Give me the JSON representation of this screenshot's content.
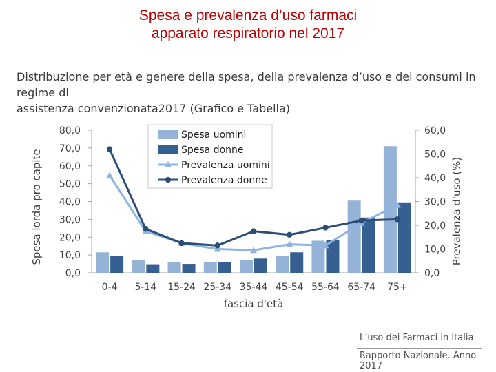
{
  "slide": {
    "title_line1": "Spesa e prevalenza d’uso farmaci",
    "title_line2": "apparato respiratorio nel 2017",
    "subtitle_line1": "Distribuzione per età e genere della spesa, della prevalenza d’uso e dei consumi in regime di",
    "subtitle_line2": "assistenza convenzionata2017 (Grafico e Tabella)"
  },
  "footer": {
    "line1": "L’uso dei Farmaci in Italia",
    "line2": "Rapporto Nazionale. Anno 2017"
  },
  "colors": {
    "title": "#c00000",
    "spesa_uomini": "#95b3d7",
    "spesa_donne": "#366092",
    "prevalenza_uomini": "#8eb4e3",
    "prevalenza_donne": "#2c4d75"
  },
  "chart_data": {
    "type": "bar",
    "categories": [
      "0-4",
      "5-14",
      "15-24",
      "25-34",
      "35-44",
      "45-54",
      "55-64",
      "65-74",
      "75+"
    ],
    "xlabel": "fascia d'età",
    "ylabel": "Spesa lorda pro capite",
    "y2label": "Prevalenza d'uso (%)",
    "ylim": [
      0,
      80
    ],
    "y2lim": [
      0,
      60
    ],
    "yticks": [
      "0,0",
      "10,0",
      "20,0",
      "30,0",
      "40,0",
      "50,0",
      "60,0",
      "70,0",
      "80,0"
    ],
    "y2ticks": [
      "0,0",
      "10,0",
      "20,0",
      "30,0",
      "40,0",
      "50,0",
      "60,0"
    ],
    "grid": false,
    "legend_position": "top-left",
    "series": [
      {
        "name": "Spesa uomini",
        "kind": "bar",
        "axis": "left",
        "values": [
          11.5,
          7.0,
          6.0,
          6.2,
          7.0,
          9.5,
          18.0,
          40.5,
          71.0
        ]
      },
      {
        "name": "Spesa donne",
        "kind": "bar",
        "axis": "left",
        "values": [
          9.5,
          4.8,
          5.0,
          6.0,
          8.0,
          11.5,
          18.5,
          31.0,
          39.5
        ]
      },
      {
        "name": "Prevalenza uomini",
        "kind": "line",
        "marker": "triangle",
        "axis": "right",
        "values": [
          41.0,
          17.5,
          12.5,
          10.0,
          9.5,
          12.0,
          11.5,
          21.0,
          28.5
        ]
      },
      {
        "name": "Prevalenza donne",
        "kind": "line",
        "marker": "circle",
        "axis": "right",
        "values": [
          52.0,
          18.5,
          12.5,
          11.5,
          17.5,
          16.0,
          19.0,
          22.0,
          22.5
        ]
      }
    ]
  }
}
